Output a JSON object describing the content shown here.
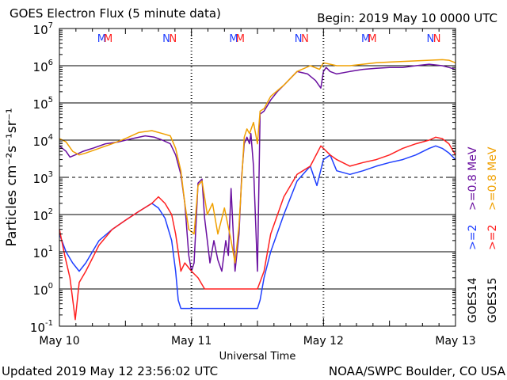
{
  "header": {
    "title": "GOES Electron Flux (5 minute data)",
    "begin": "Begin:  2019 May 10  0000 UTC"
  },
  "footer": {
    "updated": "Updated 2019 May 12 23:56:02 UTC",
    "credit": "NOAA/SWPC Boulder, CO USA"
  },
  "chart_data": {
    "type": "line",
    "title": "GOES Electron Flux (5 minute data)",
    "xlabel": "Universal Time",
    "ylabel": "Particles cm⁻²s⁻¹sr⁻¹",
    "y_scale": "log",
    "ylim": [
      0.1,
      10000000
    ],
    "xlim": [
      "2019-05-10 00:00",
      "2019-05-13 00:00"
    ],
    "x_ticks": [
      "May 10",
      "May 11",
      "May 12",
      "May 13"
    ],
    "y_ticks": [
      {
        "base": "10",
        "exp": "-1"
      },
      {
        "base": "10",
        "exp": "0"
      },
      {
        "base": "10",
        "exp": "1"
      },
      {
        "base": "10",
        "exp": "2"
      },
      {
        "base": "10",
        "exp": "3"
      },
      {
        "base": "10",
        "exp": "4"
      },
      {
        "base": "10",
        "exp": "5"
      },
      {
        "base": "10",
        "exp": "6"
      },
      {
        "base": "10",
        "exp": "7"
      }
    ],
    "grid": "horizontal lines at each decade; dashed line at 10^3",
    "threshold": 1000,
    "mn_markers": [
      {
        "day": 0.32,
        "label": "M",
        "color": "#1f3fff"
      },
      {
        "day": 0.37,
        "label": "M",
        "color": "#ff2020"
      },
      {
        "day": 0.81,
        "label": "N",
        "color": "#1f3fff"
      },
      {
        "day": 0.86,
        "label": "N",
        "color": "#ff2020"
      },
      {
        "day": 1.32,
        "label": "M",
        "color": "#1f3fff"
      },
      {
        "day": 1.37,
        "label": "M",
        "color": "#ff2020"
      },
      {
        "day": 1.81,
        "label": "N",
        "color": "#1f3fff"
      },
      {
        "day": 1.86,
        "label": "N",
        "color": "#ff2020"
      },
      {
        "day": 2.32,
        "label": "M",
        "color": "#1f3fff"
      },
      {
        "day": 2.37,
        "label": "M",
        "color": "#ff2020"
      },
      {
        "day": 2.81,
        "label": "N",
        "color": "#1f3fff"
      },
      {
        "day": 2.86,
        "label": "N",
        "color": "#ff2020"
      }
    ],
    "legend": {
      "placement": "right, vertical",
      "groups": [
        {
          "label": "GOES15",
          "items": [
            {
              "text": ">=2",
              "color": "#ff2020"
            },
            {
              "text": ">=0.8 MeV",
              "color": "#f0a000"
            }
          ]
        },
        {
          "label": "GOES14",
          "items": [
            {
              "text": ">=2",
              "color": "#1f3fff"
            },
            {
              "text": ">=0.8 MeV",
              "color": "#6a10a0"
            }
          ]
        }
      ]
    },
    "series": [
      {
        "name": "GOES14 >=0.8 MeV",
        "color": "#6a10a0",
        "x_days": [
          0.0,
          0.05,
          0.08,
          0.12,
          0.18,
          0.25,
          0.35,
          0.45,
          0.55,
          0.65,
          0.72,
          0.78,
          0.84,
          0.88,
          0.92,
          0.95,
          0.98,
          1.0,
          1.02,
          1.05,
          1.08,
          1.1,
          1.12,
          1.14,
          1.17,
          1.2,
          1.23,
          1.26,
          1.28,
          1.3,
          1.33,
          1.36,
          1.38,
          1.4,
          1.42,
          1.44,
          1.45,
          1.47,
          1.5,
          1.52,
          1.55,
          1.58,
          1.6,
          1.65,
          1.7,
          1.8,
          1.88,
          1.94,
          1.98,
          2.0,
          2.02,
          2.05,
          2.1,
          2.2,
          2.3,
          2.4,
          2.5,
          2.6,
          2.7,
          2.8,
          2.9,
          2.95,
          3.0
        ],
        "y": [
          7000,
          5000,
          3500,
          4000,
          5000,
          6000,
          8000,
          9000,
          11000,
          13000,
          12000,
          10000,
          8000,
          4000,
          1200,
          200,
          8,
          3,
          5,
          700,
          900,
          80,
          20,
          5,
          20,
          6,
          3,
          20,
          8,
          500,
          3,
          30,
          1000,
          8000,
          12000,
          8000,
          15000,
          2000,
          3,
          50000,
          60000,
          90000,
          120000,
          200000,
          300000,
          700000,
          600000,
          400000,
          250000,
          700000,
          900000,
          700000,
          600000,
          700000,
          800000,
          850000,
          900000,
          900000,
          1000000,
          1100000,
          1000000,
          900000,
          800000
        ]
      },
      {
        "name": "GOES15 >=0.8 MeV",
        "color": "#f0a000",
        "x_days": [
          0.0,
          0.05,
          0.1,
          0.15,
          0.2,
          0.3,
          0.4,
          0.5,
          0.6,
          0.7,
          0.78,
          0.84,
          0.88,
          0.92,
          0.95,
          0.98,
          1.02,
          1.05,
          1.08,
          1.12,
          1.16,
          1.2,
          1.25,
          1.3,
          1.33,
          1.36,
          1.4,
          1.42,
          1.44,
          1.47,
          1.5,
          1.52,
          1.55,
          1.6,
          1.7,
          1.8,
          1.9,
          1.97,
          2.0,
          2.05,
          2.1,
          2.2,
          2.3,
          2.4,
          2.5,
          2.6,
          2.7,
          2.8,
          2.9,
          2.95,
          3.0
        ],
        "y": [
          11000,
          9000,
          5000,
          4000,
          4500,
          6000,
          8000,
          11000,
          16000,
          18000,
          15000,
          13000,
          6000,
          1500,
          200,
          40,
          30,
          600,
          800,
          100,
          200,
          30,
          150,
          20,
          5,
          50,
          12000,
          20000,
          15000,
          30000,
          8000,
          60000,
          70000,
          150000,
          300000,
          700000,
          1000000,
          800000,
          1200000,
          1100000,
          1000000,
          1000000,
          1100000,
          1200000,
          1250000,
          1300000,
          1350000,
          1400000,
          1450000,
          1400000,
          1200000
        ]
      },
      {
        "name": "GOES14 >=2",
        "color": "#1f3fff",
        "x_days": [
          0.0,
          0.05,
          0.1,
          0.15,
          0.2,
          0.3,
          0.4,
          0.5,
          0.6,
          0.7,
          0.75,
          0.8,
          0.85,
          0.88,
          0.9,
          0.92,
          0.95,
          1.0,
          1.05,
          1.1,
          1.15,
          1.2,
          1.25,
          1.3,
          1.35,
          1.4,
          1.45,
          1.5,
          1.52,
          1.55,
          1.6,
          1.7,
          1.8,
          1.9,
          1.95,
          2.0,
          2.05,
          2.1,
          2.2,
          2.3,
          2.4,
          2.5,
          2.6,
          2.7,
          2.8,
          2.85,
          2.9,
          2.95,
          3.0
        ],
        "y": [
          30,
          10,
          5,
          3,
          5,
          20,
          40,
          70,
          120,
          200,
          150,
          80,
          20,
          3,
          0.5,
          0.3,
          0.3,
          0.3,
          0.3,
          0.3,
          0.3,
          0.3,
          0.3,
          0.3,
          0.3,
          0.3,
          0.3,
          0.3,
          0.5,
          2,
          10,
          100,
          800,
          2000,
          600,
          3000,
          4000,
          1500,
          1200,
          1500,
          2000,
          2500,
          3000,
          4000,
          6000,
          7000,
          6000,
          4500,
          3000
        ]
      },
      {
        "name": "GOES15 >=2",
        "color": "#ff2020",
        "x_days": [
          0.0,
          0.04,
          0.08,
          0.12,
          0.15,
          0.2,
          0.3,
          0.4,
          0.5,
          0.6,
          0.7,
          0.75,
          0.8,
          0.85,
          0.88,
          0.9,
          0.92,
          0.95,
          1.0,
          1.05,
          1.1,
          1.15,
          1.2,
          1.25,
          1.3,
          1.35,
          1.4,
          1.45,
          1.5,
          1.55,
          1.6,
          1.7,
          1.8,
          1.9,
          1.98,
          2.0,
          2.05,
          2.1,
          2.2,
          2.3,
          2.4,
          2.5,
          2.6,
          2.7,
          2.8,
          2.85,
          2.9,
          2.95,
          3.0
        ],
        "y": [
          40,
          8,
          2,
          0.15,
          1.5,
          3,
          15,
          40,
          70,
          120,
          200,
          300,
          200,
          100,
          30,
          10,
          3,
          5,
          3,
          2,
          1,
          1,
          1,
          1,
          1,
          1,
          1,
          1,
          1,
          3,
          30,
          300,
          1200,
          2000,
          7000,
          6000,
          4000,
          3000,
          2000,
          2500,
          3000,
          4000,
          6000,
          8000,
          10000,
          12000,
          11000,
          8000,
          4000
        ]
      }
    ]
  }
}
